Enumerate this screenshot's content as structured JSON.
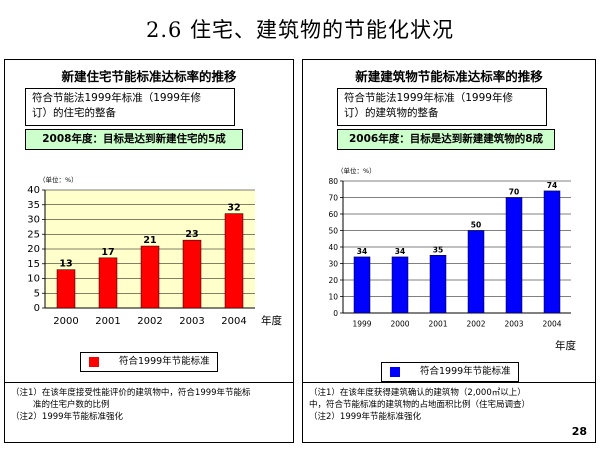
{
  "slide_title": "2.6 住宅、建筑物的节能化状况",
  "page_number": "28",
  "chart_data": [
    {
      "type": "bar",
      "title": "新建住宅节能标准达标率的推移",
      "standard_box": [
        "符合节能法1999年标准（1999年修",
        "订）的住宅的整备"
      ],
      "goal": "2008年度：目标是达到新建住宅的5成",
      "unit_label": "（单位：%）",
      "categories": [
        "2000",
        "2001",
        "2002",
        "2003",
        "2004"
      ],
      "values": [
        13,
        17,
        21,
        23,
        32
      ],
      "xlabel": "年度",
      "ylim": [
        0,
        40
      ],
      "yticks": [
        0,
        5,
        10,
        15,
        20,
        25,
        30,
        35,
        40
      ],
      "bar_color": "#ff0000",
      "plot_bg": "#ffffcc",
      "grid": true,
      "legend": "符合1999年节能标准",
      "notes": [
        "（注1）在该年度接受性能评价的建筑物中，符合1999年节能标",
        "准的住宅户数的比例",
        "（注2）1999年节能标准强化"
      ]
    },
    {
      "type": "bar",
      "title": "新建建筑物节能标准达标率的推移",
      "standard_box": [
        "符合节能法1999年标准（1999年修",
        "订）的建筑物的整备"
      ],
      "goal": "2006年度：目标是达到新建建筑物的8成",
      "unit_label": "（单位：%）",
      "categories": [
        "1999",
        "2000",
        "2001",
        "2002",
        "2003",
        "2004"
      ],
      "values": [
        34,
        34,
        35,
        50,
        70,
        74
      ],
      "xlabel": "年度",
      "ylim": [
        0,
        80
      ],
      "yticks": [
        0,
        10,
        20,
        30,
        40,
        50,
        60,
        70,
        80
      ],
      "bar_color": "#0000ff",
      "plot_bg": "#ffffff",
      "grid": true,
      "legend": "符合1999年节能标准",
      "notes": [
        "（注1）在该年度获得建筑确认的建筑物（2,000㎡以上）",
        "中，符合节能标准的建筑物的占地面积比例（住宅局调查）",
        "（注2）1999年节能标准强化"
      ]
    }
  ]
}
